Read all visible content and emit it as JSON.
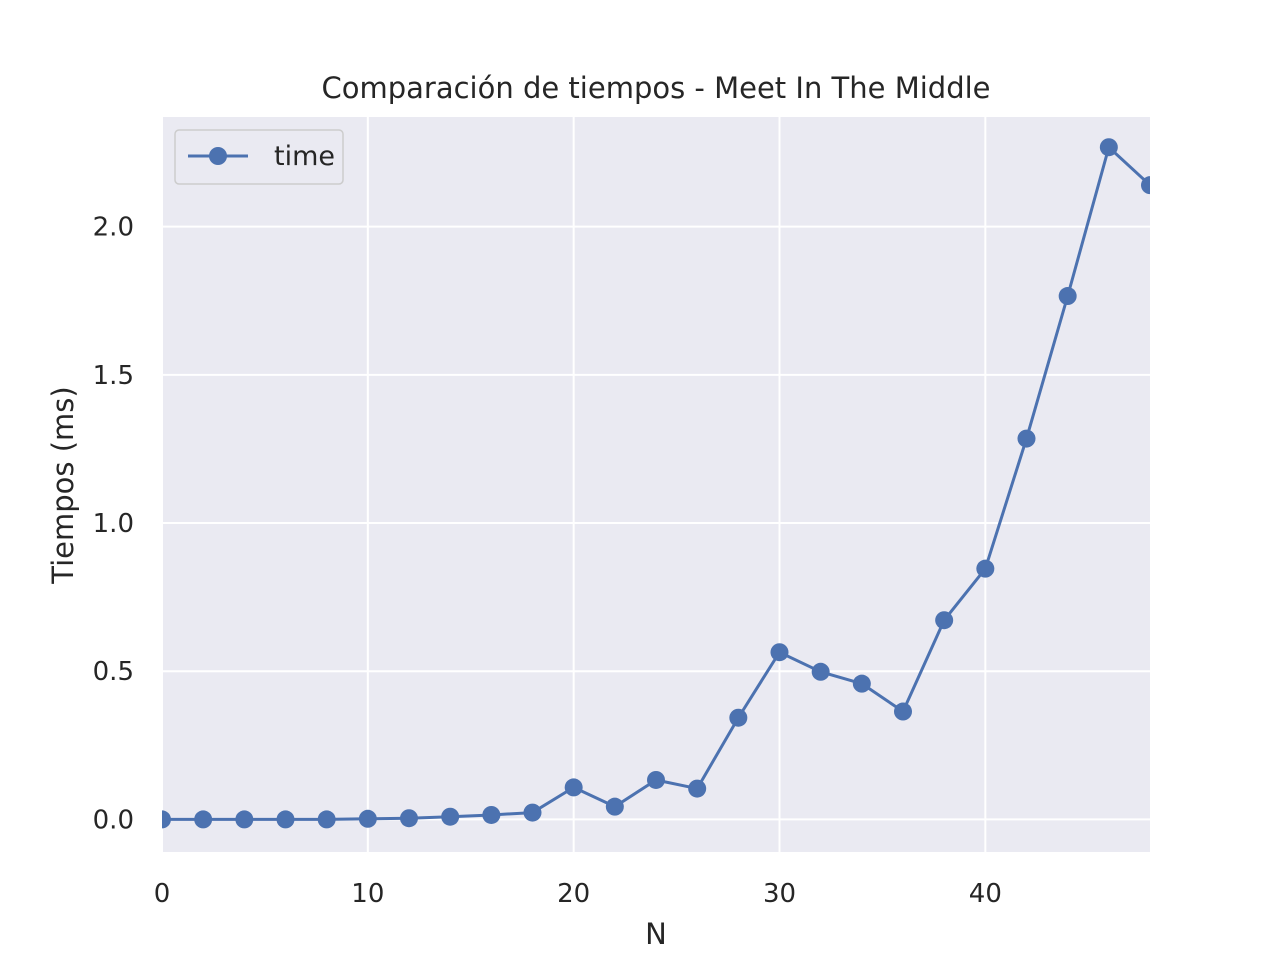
{
  "chart_data": {
    "type": "line",
    "title": "Comparación de tiempos - Meet In The Middle",
    "xlabel": "N",
    "ylabel": "Tiempos (ms)",
    "xlim": [
      0,
      48
    ],
    "ylim": [
      -0.11,
      2.37
    ],
    "xticks": [
      0,
      10,
      20,
      30,
      40
    ],
    "xtick_labels": [
      "0",
      "10",
      "20",
      "30",
      "40"
    ],
    "yticks": [
      0.0,
      0.5,
      1.0,
      1.5,
      2.0
    ],
    "ytick_labels": [
      "0.0",
      "0.5",
      "1.0",
      "1.5",
      "2.0"
    ],
    "grid": true,
    "legend_position": "top-left",
    "series": [
      {
        "name": "time",
        "color": "#4c72b0",
        "marker": "circle",
        "x": [
          0,
          2,
          4,
          6,
          8,
          10,
          12,
          14,
          16,
          18,
          20,
          22,
          24,
          26,
          28,
          30,
          32,
          34,
          36,
          38,
          40,
          42,
          44,
          46,
          48
        ],
        "values": [
          0.0,
          0.0,
          0.0,
          0.0,
          0.0,
          0.002,
          0.004,
          0.009,
          0.015,
          0.023,
          0.108,
          0.043,
          0.133,
          0.104,
          0.343,
          0.564,
          0.498,
          0.458,
          0.364,
          0.672,
          0.846,
          1.285,
          1.766,
          2.268,
          2.14
        ]
      }
    ],
    "colors": {
      "plot_background": "#eaeaf2",
      "grid": "#ffffff",
      "text": "#262626"
    }
  }
}
